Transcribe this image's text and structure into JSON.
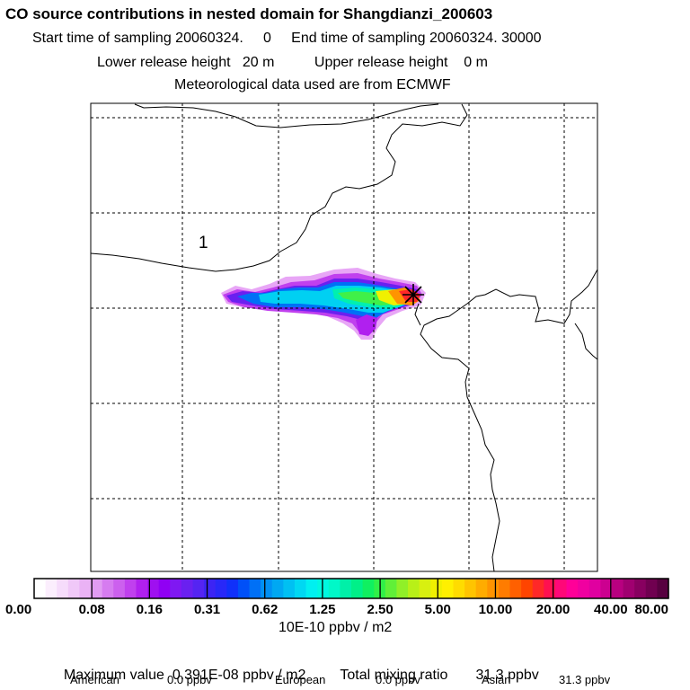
{
  "header": {
    "title": "CO  source contributions in nested domain for Shangdianzi_200603",
    "sampling": "Start time of sampling 20060324.     0     End time of sampling 20060324. 30000",
    "release": "Lower release height   20 m          Upper release height    0 m",
    "met": "Meteorological data used are from ECMWF"
  },
  "map": {
    "contour_label": "1",
    "receptor_marker": "station-star-icon"
  },
  "chart_data": {
    "type": "heatmap",
    "title": "CO  source contributions in nested domain for Shangdianzi_200603",
    "colorbar": {
      "unit_label": "10E-10 ppbv / m2",
      "tick_labels": [
        "0.00",
        "0.08",
        "0.16",
        "0.31",
        "0.62",
        "1.25",
        "2.50",
        "5.00",
        "10.00",
        "20.00",
        "40.00",
        "80.00"
      ],
      "tick_values": [
        0.0,
        0.08,
        0.16,
        0.31,
        0.62,
        1.25,
        2.5,
        5.0,
        10.0,
        20.0,
        40.0,
        80.0
      ],
      "colors": [
        "#ffffff",
        "#fbeefd",
        "#f6dcfb",
        "#f0c8f8",
        "#eab2f5",
        "#e19cf2",
        "#d67cf0",
        "#cc60ee",
        "#c040ee",
        "#b020ef",
        "#9f10f0",
        "#9000f4",
        "#7f18f2",
        "#6a20f0",
        "#5524f2",
        "#3c24f4",
        "#2828f8",
        "#1030fa",
        "#0050f8",
        "#0070f6",
        "#0090f4",
        "#00a8f2",
        "#00c0f2",
        "#00d8f2",
        "#00f0f0",
        "#00f8e0",
        "#00f8c8",
        "#00f0a8",
        "#00f088",
        "#10f060",
        "#30f048",
        "#60f038",
        "#90f028",
        "#b8f018",
        "#d8f010",
        "#f0f000",
        "#fff000",
        "#ffdc00",
        "#ffc400",
        "#ffac00",
        "#ff9400",
        "#ff7c00",
        "#ff6000",
        "#ff4400",
        "#ff2828",
        "#ff1050",
        "#ff0878",
        "#ff0098",
        "#f000a0",
        "#e000a0",
        "#cc0090",
        "#b80080",
        "#a00070",
        "#880060",
        "#700050",
        "#580040"
      ]
    },
    "summary": {
      "max_label": "Maximum value  0.391E-08 ppbv / m2",
      "total_label": "Total mixing ratio       31.3 ppbv",
      "max_value": 3.91e-09,
      "total_mixing_ratio": 31.3
    },
    "regions": [
      {
        "name": "American",
        "value_label": "0.0 ppbv",
        "value": 0.0
      },
      {
        "name": "European",
        "value_label": "0.0 ppbv",
        "value": 0.0
      },
      {
        "name": "Asian",
        "value_label": "31.3 ppbv",
        "value": 31.3
      }
    ]
  }
}
